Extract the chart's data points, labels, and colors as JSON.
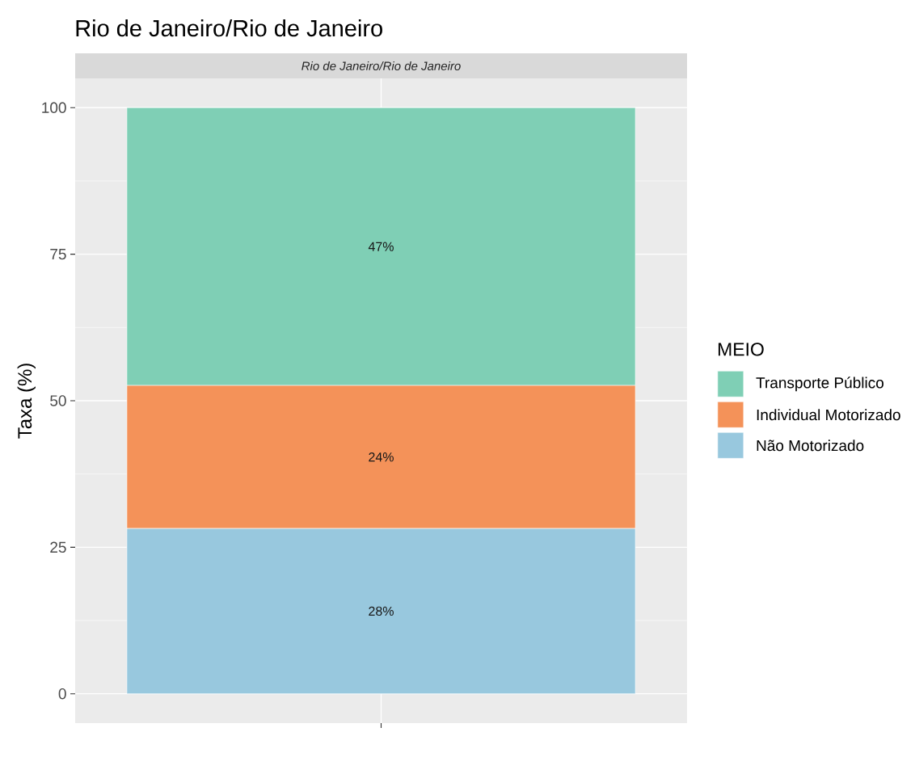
{
  "chart_data": {
    "type": "bar",
    "title": "Rio de Janeiro/Rio de Janeiro",
    "subtitle": "Rio de Janeiro/Rio de Janeiro",
    "ylabel": "Taxa (%)",
    "legend_title": "MEIO",
    "categories": [
      null
    ],
    "stacked": true,
    "series": [
      {
        "name": "Não Motorizado",
        "color": "#98c8de",
        "values": [
          28.2
        ],
        "value_labels": [
          "28%"
        ]
      },
      {
        "name": "Individual Motorizado",
        "color": "#f49259",
        "values": [
          24.4
        ],
        "value_labels": [
          "24%"
        ]
      },
      {
        "name": "Transporte Público",
        "color": "#7fcfb5",
        "values": [
          47.4
        ],
        "value_labels": [
          "47%"
        ]
      }
    ],
    "ylim": [
      -5,
      105
    ],
    "yticks": [
      0,
      25,
      50,
      75,
      100
    ],
    "grid": true,
    "legend": "right"
  }
}
